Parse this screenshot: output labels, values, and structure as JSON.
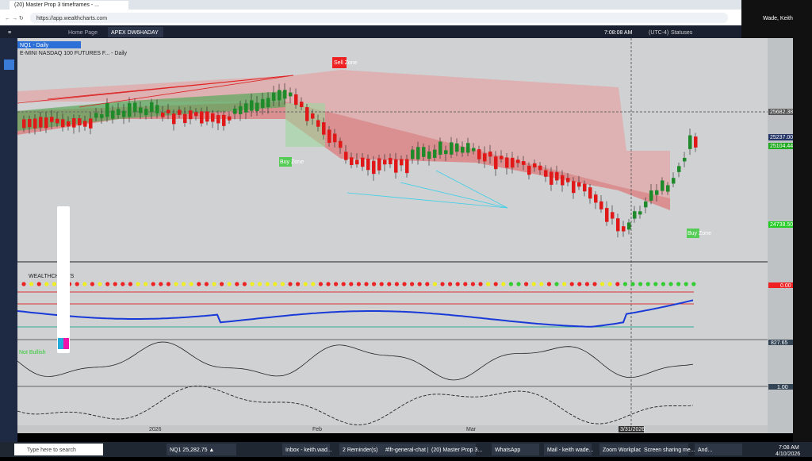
{
  "browser": {
    "tab": "(20) Master Prop 3 timeframes - ...",
    "url": "https://app.wealthcharts.com"
  },
  "webcam": {
    "name": "Wade, Keith"
  },
  "app": {
    "tabs": [
      "Home Page",
      "APEX DW6HADAY"
    ],
    "clock": "7:08:08 AM",
    "timezone": "(UTC-4)",
    "status": "Statuses"
  },
  "chart": {
    "symbol": "NQ1 - Daily",
    "instrument": "E-MINI NASDAQ 100 FUTURES F... - Daily",
    "zones": [
      "Sell Zone",
      "Buy Zone",
      "Buy Zone"
    ],
    "price_labels": [
      "25682.38",
      "25237.00",
      "25104.44",
      "24738.50"
    ],
    "panel_labels": [
      "WEALTHCHARTS",
      "0.00",
      "827.65",
      "1.00"
    ],
    "badge": "Not Bullish",
    "x_labels": [
      "2026",
      "Feb",
      "Mar",
      "3/31/2026"
    ]
  },
  "taskbar": {
    "search": "Type here to search",
    "items": [
      "NQ1 25,282.75 ▲",
      "Inbox - keith.wad...",
      "2 Reminder(s)",
      "#lfr-general-chat |...",
      "(20) Master Prop 3...",
      "WhatsApp",
      "Mail - keith wade...",
      "Zoom Workplace",
      "Screen sharing me...",
      "And..."
    ],
    "time": "7:08 AM",
    "date": "4/10/2026"
  }
}
